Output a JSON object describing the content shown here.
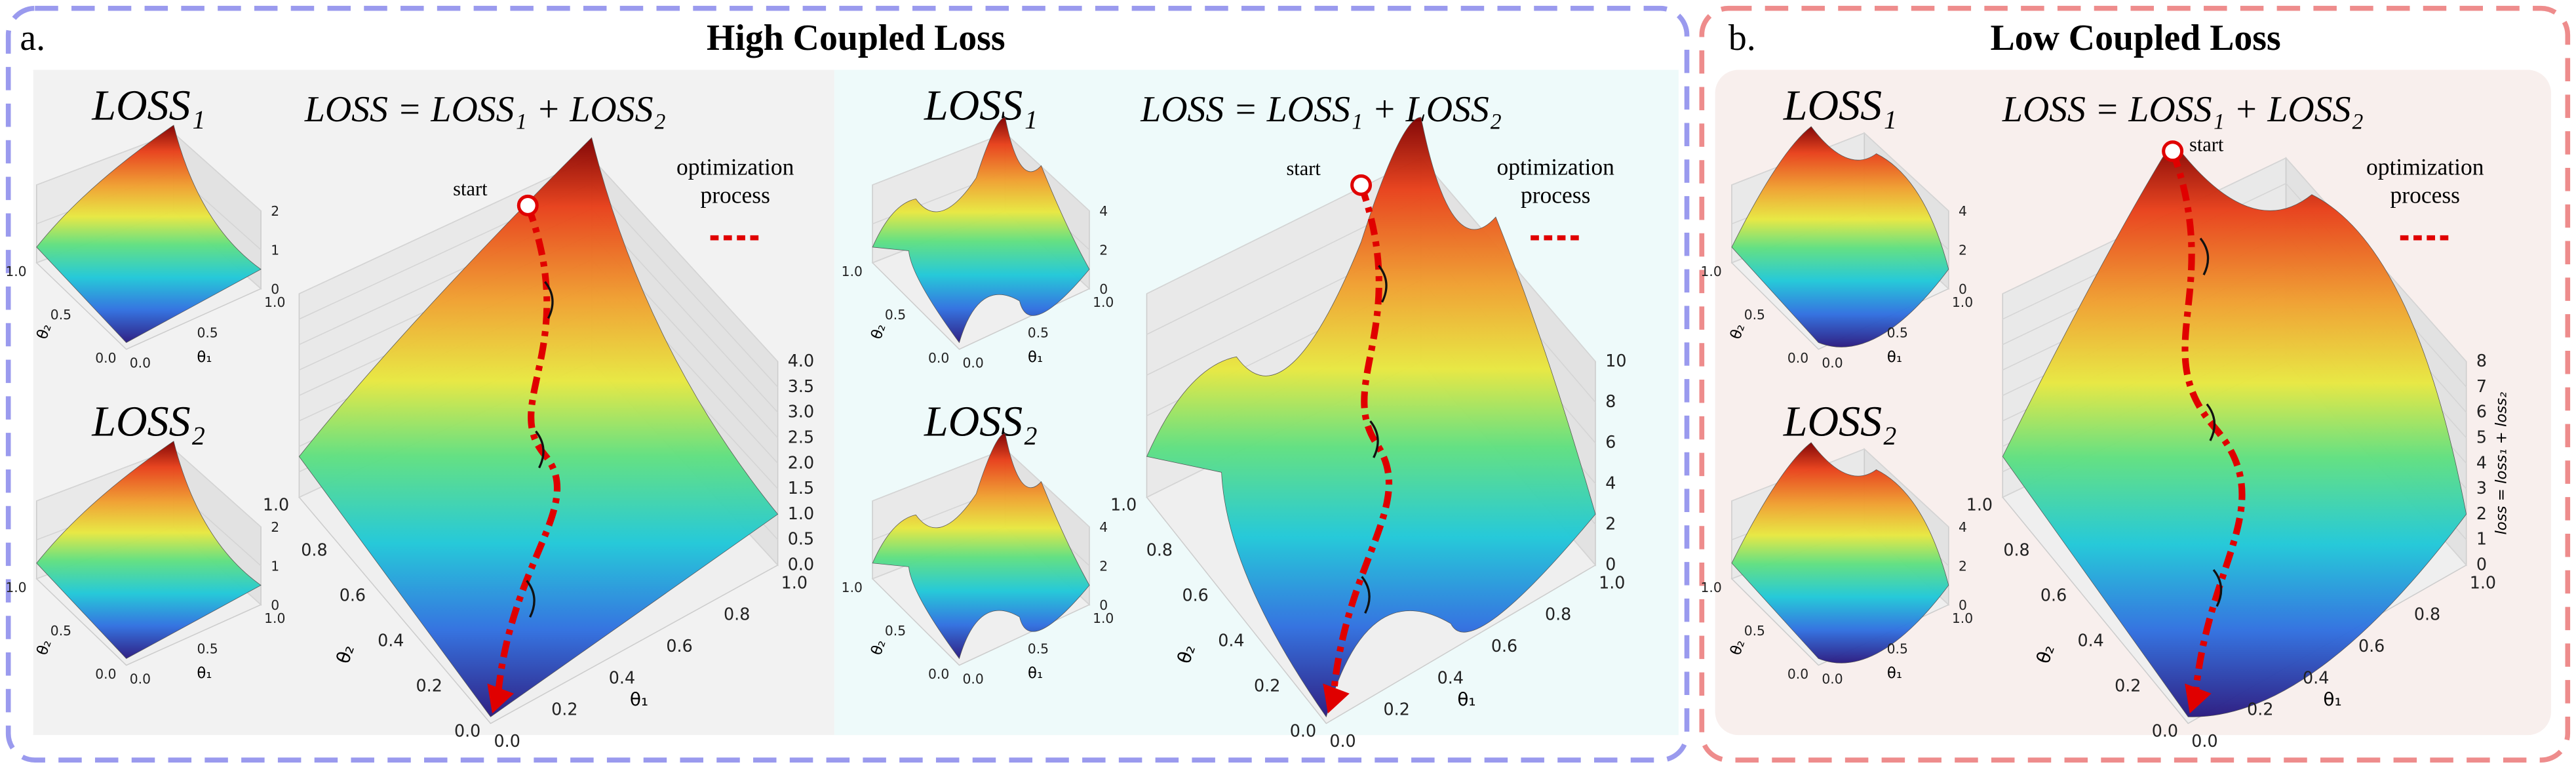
{
  "panels": [
    {
      "label": "a.",
      "title": "High Coupled Loss",
      "groups": [
        {
          "loss1": {
            "title": "LOSS₁",
            "zticks": [
              "0",
              "1",
              "2"
            ],
            "xticks": [
              "0.0",
              "0.5",
              "1.0"
            ],
            "yticks": [
              "0.0",
              "0.5",
              "1.0"
            ],
            "xlabel": "θ₁",
            "ylabel": "θ₂"
          },
          "loss2": {
            "title": "LOSS₂",
            "zticks": [
              "0",
              "1",
              "2"
            ],
            "xticks": [
              "0.0",
              "0.5",
              "1.0"
            ],
            "yticks": [
              "0.0",
              "0.5",
              "1.0"
            ],
            "xlabel": "θ₁",
            "ylabel": "θ₂"
          },
          "main": {
            "formula": "LOSS = LOSS₁ + LOSS₂",
            "zticks": [
              "0.0",
              "0.5",
              "1.0",
              "1.5",
              "2.0",
              "2.5",
              "3.0",
              "3.5",
              "4.0"
            ],
            "xticks": [
              "0.0",
              "0.2",
              "0.4",
              "0.6",
              "0.8",
              "1.0"
            ],
            "yticks": [
              "0.0",
              "0.2",
              "0.4",
              "0.6",
              "0.8",
              "1.0"
            ],
            "xlabel": "θ₁",
            "ylabel": "θ₂",
            "start": "start",
            "legend": [
              "optimization",
              "process"
            ]
          }
        },
        {
          "loss1": {
            "title": "LOSS₁",
            "zticks": [
              "0",
              "2",
              "4"
            ],
            "xticks": [
              "0.0",
              "0.5",
              "1.0"
            ],
            "yticks": [
              "0.0",
              "0.5",
              "1.0"
            ],
            "xlabel": "θ₁",
            "ylabel": "θ₂"
          },
          "loss2": {
            "title": "LOSS₂",
            "zticks": [
              "0",
              "2",
              "4"
            ],
            "xticks": [
              "0.0",
              "0.5",
              "1.0"
            ],
            "yticks": [
              "0.0",
              "0.5",
              "1.0"
            ],
            "xlabel": "θ₁",
            "ylabel": "θ₂"
          },
          "main": {
            "formula": "LOSS = LOSS₁ + LOSS₂",
            "zticks": [
              "0",
              "2",
              "4",
              "6",
              "8",
              "10"
            ],
            "xticks": [
              "0.0",
              "0.2",
              "0.4",
              "0.6",
              "0.8",
              "1.0"
            ],
            "yticks": [
              "0.0",
              "0.2",
              "0.4",
              "0.6",
              "0.8",
              "1.0"
            ],
            "xlabel": "θ₁",
            "ylabel": "θ₂",
            "start": "start",
            "legend": [
              "optimization",
              "process"
            ]
          }
        }
      ]
    },
    {
      "label": "b.",
      "title": "Low Coupled Loss",
      "groups": [
        {
          "loss1": {
            "title": "LOSS₁",
            "zticks": [
              "0",
              "2",
              "4"
            ],
            "xticks": [
              "0.0",
              "0.5",
              "1.0"
            ],
            "yticks": [
              "0.0",
              "0.5",
              "1.0"
            ],
            "xlabel": "θ₁",
            "ylabel": "θ₂"
          },
          "loss2": {
            "title": "LOSS₂",
            "zticks": [
              "0",
              "2",
              "4"
            ],
            "xticks": [
              "0.0",
              "0.5",
              "1.0"
            ],
            "yticks": [
              "0.0",
              "0.5",
              "1.0"
            ],
            "xlabel": "θ₁",
            "ylabel": "θ₂"
          },
          "main": {
            "formula": "LOSS = LOSS₁ + LOSS₂",
            "zticks": [
              "0",
              "1",
              "2",
              "3",
              "4",
              "5",
              "6",
              "7",
              "8"
            ],
            "xticks": [
              "0.0",
              "0.2",
              "0.4",
              "0.6",
              "0.8",
              "1.0"
            ],
            "yticks": [
              "0.0",
              "0.2",
              "0.4",
              "0.6",
              "0.8",
              "1.0"
            ],
            "xlabel": "θ₁",
            "ylabel": "θ₂",
            "zlabel": "loss = loss₁ + loss₂",
            "start": "start",
            "legend": [
              "optimization",
              "process"
            ]
          }
        }
      ]
    }
  ]
}
